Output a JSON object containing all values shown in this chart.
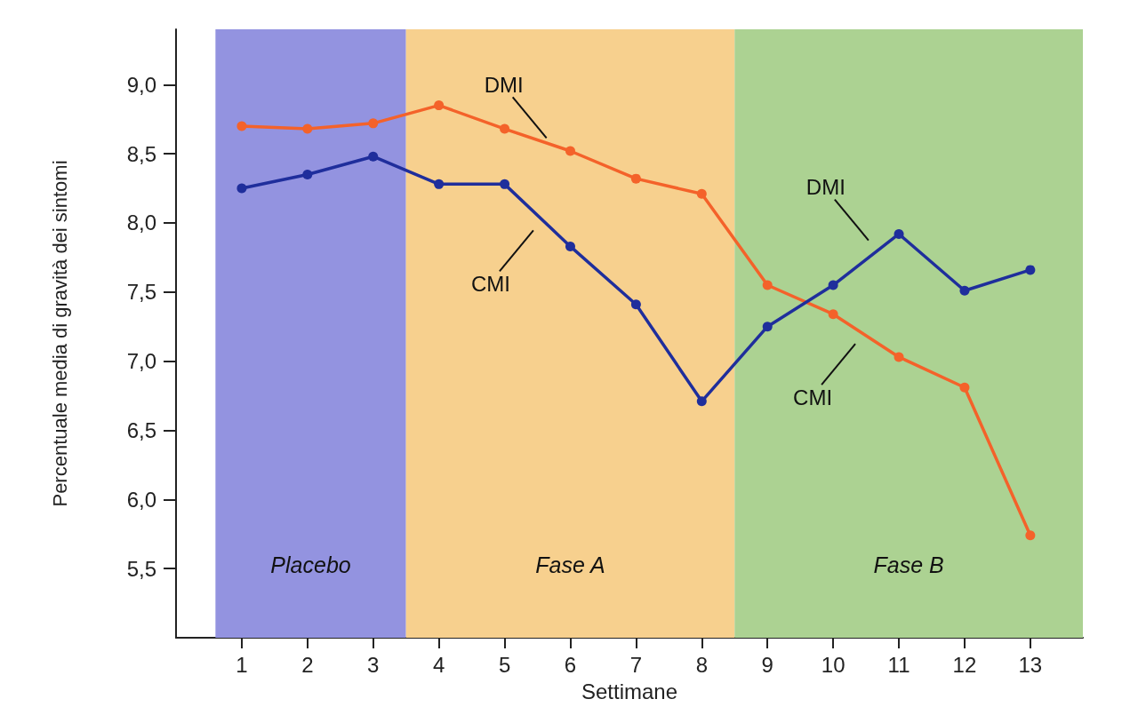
{
  "chart_data": {
    "type": "line",
    "xlabel": "Settimane",
    "ylabel": "Percentuale media di gravità dei sintomi",
    "x": [
      1,
      2,
      3,
      4,
      5,
      6,
      7,
      8,
      9,
      10,
      11,
      12,
      13
    ],
    "series": [
      {
        "color": "#f4622a",
        "values": [
          8.7,
          8.68,
          8.72,
          8.85,
          8.68,
          8.52,
          8.32,
          8.21,
          7.55,
          7.34,
          7.03,
          6.81,
          5.74
        ]
      },
      {
        "color": "#1f2e9c",
        "values": [
          8.25,
          8.35,
          8.48,
          8.28,
          8.28,
          7.83,
          7.41,
          6.71,
          7.25,
          7.55,
          7.92,
          7.51,
          7.66
        ]
      }
    ],
    "xlim": [
      0,
      13.8
    ],
    "xticks": [
      1,
      2,
      3,
      4,
      5,
      6,
      7,
      8,
      9,
      10,
      11,
      12,
      13
    ],
    "ylim": [
      5,
      9.4
    ],
    "yticks": [
      {
        "value": 5.5,
        "label": "5,5"
      },
      {
        "value": 6,
        "label": "6,0"
      },
      {
        "value": 6.5,
        "label": "6,5"
      },
      {
        "value": 7,
        "label": "7,0"
      },
      {
        "value": 7.5,
        "label": "7,5"
      },
      {
        "value": 8,
        "label": "8,0"
      },
      {
        "value": 8.5,
        "label": "8,5"
      },
      {
        "value": 9,
        "label": "9,0"
      }
    ],
    "bands": [
      {
        "axis": "x",
        "from": 0.6,
        "to": 3.5,
        "label": "Placebo",
        "color": "#9393e0"
      },
      {
        "axis": "x",
        "from": 3.5,
        "to": 8.5,
        "label": "Fase A",
        "color": "#f7d08e"
      },
      {
        "axis": "x",
        "from": 8.5,
        "to": 13.8,
        "label": "Fase B",
        "color": "#acd292"
      }
    ],
    "annotations": [
      {
        "text": "DMI",
        "x": 5.8,
        "y": 8.55
      },
      {
        "text": "CMI",
        "x": 5.6,
        "y": 8.01
      },
      {
        "text": "DMI",
        "x": 10.7,
        "y": 7.81
      },
      {
        "text": "CMI",
        "x": 10.5,
        "y": 7.19
      }
    ],
    "marker": "circle",
    "line_style": "solid",
    "grid": false
  }
}
